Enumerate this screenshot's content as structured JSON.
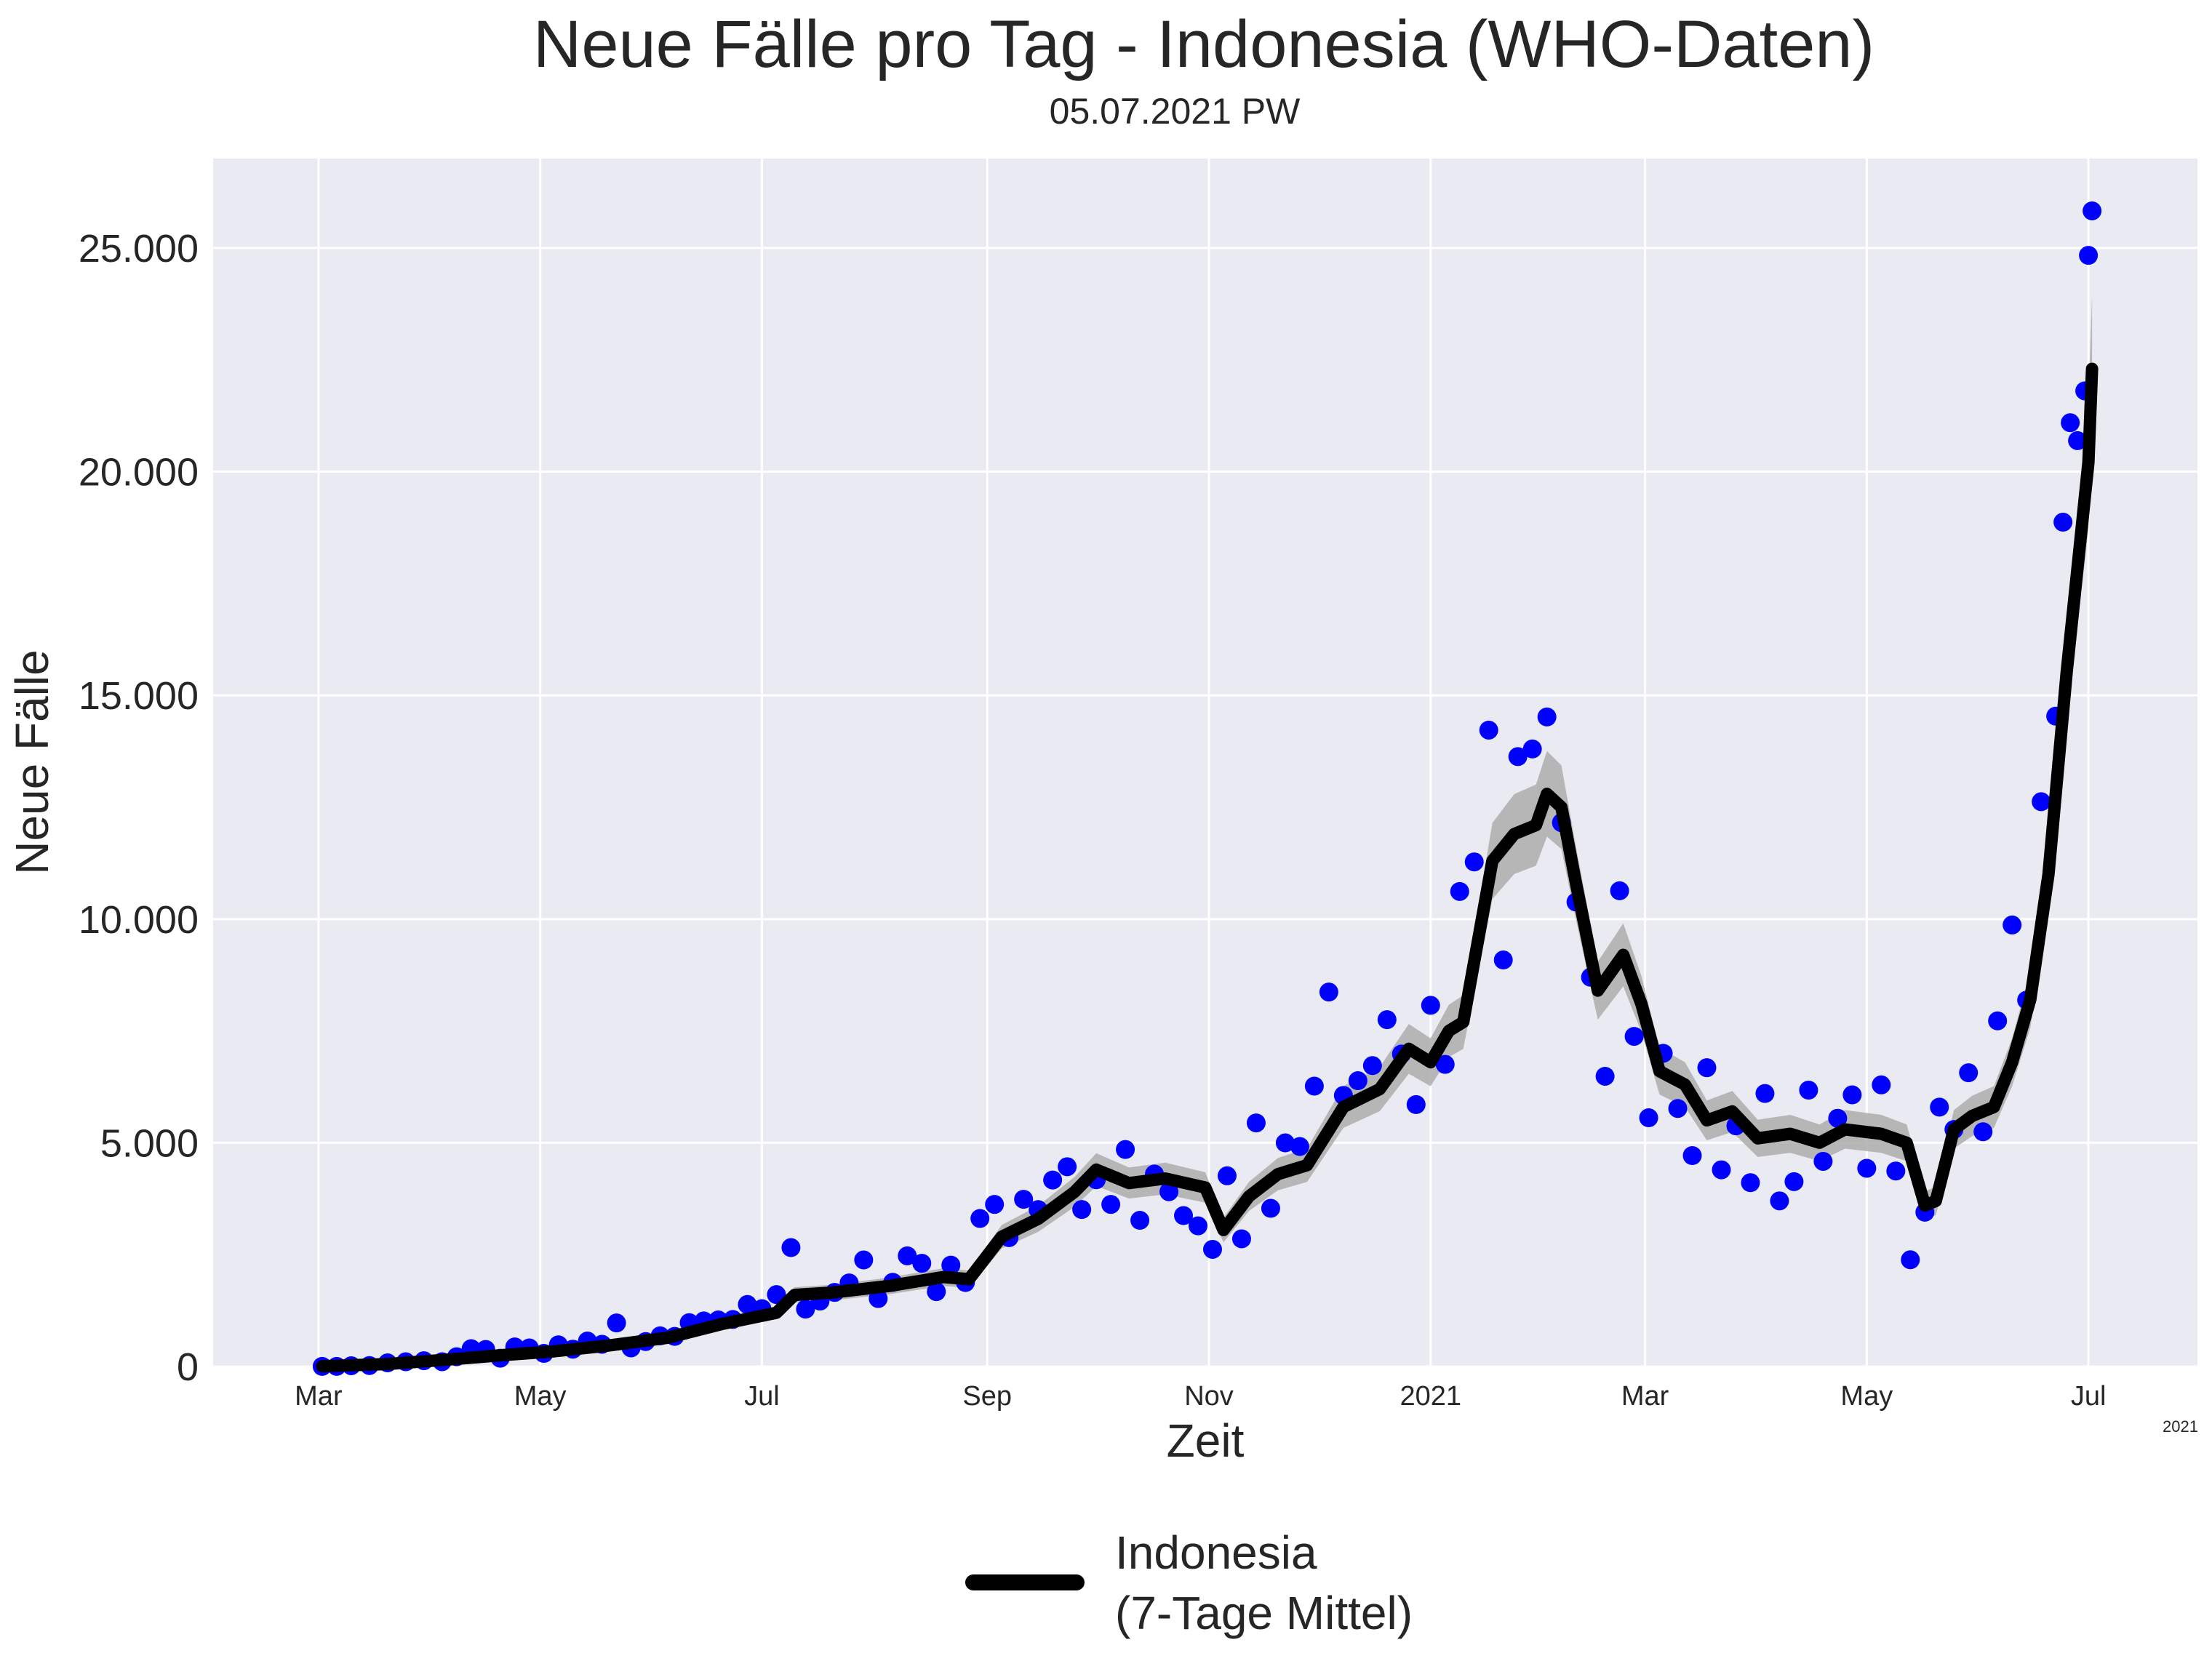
{
  "chart_data": {
    "type": "line",
    "title": "Neue Fälle pro Tag - Indonesia (WHO-Daten)",
    "subtitle": "05.07.2021 PW",
    "xlabel": "Zeit",
    "ylabel": "Neue Fälle",
    "x_offset_label": "2021",
    "xlim": [
      "2020-02-01",
      "2021-07-31"
    ],
    "ylim": [
      0,
      27000
    ],
    "grid": true,
    "background": "#EAEAF2",
    "x_ticks": [
      {
        "date": "2020-03-01",
        "label": "Mar"
      },
      {
        "date": "2020-05-01",
        "label": "May"
      },
      {
        "date": "2020-07-01",
        "label": "Jul"
      },
      {
        "date": "2020-09-01",
        "label": "Sep"
      },
      {
        "date": "2020-11-01",
        "label": "Nov"
      },
      {
        "date": "2021-01-01",
        "label": "2021"
      },
      {
        "date": "2021-03-01",
        "label": "Mar"
      },
      {
        "date": "2021-05-01",
        "label": "May"
      },
      {
        "date": "2021-07-01",
        "label": "Jul"
      }
    ],
    "y_ticks": [
      {
        "value": 0,
        "label": "0"
      },
      {
        "value": 5000,
        "label": "5.000"
      },
      {
        "value": 10000,
        "label": "10.000"
      },
      {
        "value": 15000,
        "label": "15.000"
      },
      {
        "value": 20000,
        "label": "20.000"
      },
      {
        "value": 25000,
        "label": "25.000"
      }
    ],
    "daily_points_color": "#0000FF",
    "band_color": "#B0B0B0",
    "line_color": "#000000",
    "daily_points": [
      [
        "2020-03-02",
        2
      ],
      [
        "2020-03-06",
        2
      ],
      [
        "2020-03-10",
        17
      ],
      [
        "2020-03-15",
        21
      ],
      [
        "2020-03-20",
        81
      ],
      [
        "2020-03-25",
        105
      ],
      [
        "2020-03-30",
        129
      ],
      [
        "2020-04-04",
        106
      ],
      [
        "2020-04-08",
        218
      ],
      [
        "2020-04-12",
        399
      ],
      [
        "2020-04-16",
        380
      ],
      [
        "2020-04-20",
        185
      ],
      [
        "2020-04-24",
        436
      ],
      [
        "2020-04-28",
        415
      ],
      [
        "2020-05-02",
        292
      ],
      [
        "2020-05-06",
        484
      ],
      [
        "2020-05-10",
        387
      ],
      [
        "2020-05-14",
        568
      ],
      [
        "2020-05-18",
        496
      ],
      [
        "2020-05-22",
        973
      ],
      [
        "2020-05-26",
        415
      ],
      [
        "2020-05-30",
        557
      ],
      [
        "2020-06-03",
        684
      ],
      [
        "2020-06-07",
        672
      ],
      [
        "2020-06-11",
        979
      ],
      [
        "2020-06-15",
        1017
      ],
      [
        "2020-06-19",
        1041
      ],
      [
        "2020-06-23",
        1051
      ],
      [
        "2020-06-27",
        1385
      ],
      [
        "2020-07-01",
        1293
      ],
      [
        "2020-07-05",
        1607
      ],
      [
        "2020-07-09",
        2657
      ],
      [
        "2020-07-13",
        1282
      ],
      [
        "2020-07-17",
        1462
      ],
      [
        "2020-07-21",
        1655
      ],
      [
        "2020-07-25",
        1868
      ],
      [
        "2020-07-29",
        2381
      ],
      [
        "2020-08-02",
        1519
      ],
      [
        "2020-08-06",
        1882
      ],
      [
        "2020-08-10",
        2473
      ],
      [
        "2020-08-14",
        2307
      ],
      [
        "2020-08-18",
        1673
      ],
      [
        "2020-08-22",
        2266
      ],
      [
        "2020-08-26",
        1877
      ],
      [
        "2020-08-30",
        3308
      ],
      [
        "2020-09-03",
        3622
      ],
      [
        "2020-09-07",
        2880
      ],
      [
        "2020-09-11",
        3737
      ],
      [
        "2020-09-15",
        3507
      ],
      [
        "2020-09-19",
        4168
      ],
      [
        "2020-09-23",
        4465
      ],
      [
        "2020-09-27",
        3509
      ],
      [
        "2020-10-01",
        4174
      ],
      [
        "2020-10-05",
        3622
      ],
      [
        "2020-10-09",
        4850
      ],
      [
        "2020-10-13",
        3267
      ],
      [
        "2020-10-17",
        4301
      ],
      [
        "2020-10-21",
        3906
      ],
      [
        "2020-10-25",
        3373
      ],
      [
        "2020-10-29",
        3143
      ],
      [
        "2020-11-02",
        2618
      ],
      [
        "2020-11-06",
        4262
      ],
      [
        "2020-11-10",
        2853
      ],
      [
        "2020-11-14",
        5444
      ],
      [
        "2020-11-18",
        3535
      ],
      [
        "2020-11-22",
        4998
      ],
      [
        "2020-11-26",
        4917
      ],
      [
        "2020-11-30",
        6267
      ],
      [
        "2020-12-04",
        8369
      ],
      [
        "2020-12-08",
        6058
      ],
      [
        "2020-12-12",
        6388
      ],
      [
        "2020-12-16",
        6725
      ],
      [
        "2020-12-20",
        7751
      ],
      [
        "2020-12-24",
        6984
      ],
      [
        "2020-12-28",
        5854
      ],
      [
        "2021-01-01",
        8072
      ],
      [
        "2021-01-05",
        6753
      ],
      [
        "2021-01-09",
        10617
      ],
      [
        "2021-01-13",
        11278
      ],
      [
        "2021-01-17",
        14224
      ],
      [
        "2021-01-21",
        9086
      ],
      [
        "2021-01-25",
        13632
      ],
      [
        "2021-01-29",
        13802
      ],
      [
        "2021-02-02",
        14518
      ],
      [
        "2021-02-06",
        12156
      ],
      [
        "2021-02-10",
        10381
      ],
      [
        "2021-02-14",
        8700
      ],
      [
        "2021-02-18",
        6486
      ],
      [
        "2021-02-22",
        10633
      ],
      [
        "2021-02-26",
        7378
      ],
      [
        "2021-03-02",
        5559
      ],
      [
        "2021-03-06",
        7000
      ],
      [
        "2021-03-10",
        5767
      ],
      [
        "2021-03-14",
        4714
      ],
      [
        "2021-03-18",
        6678
      ],
      [
        "2021-03-22",
        4396
      ],
      [
        "2021-03-26",
        5379
      ],
      [
        "2021-03-30",
        4108
      ],
      [
        "2021-04-03",
        6101
      ],
      [
        "2021-04-07",
        3701
      ],
      [
        "2021-04-11",
        4131
      ],
      [
        "2021-04-15",
        6177
      ],
      [
        "2021-04-19",
        4585
      ],
      [
        "2021-04-23",
        5548
      ],
      [
        "2021-04-27",
        6071
      ],
      [
        "2021-05-01",
        4430
      ],
      [
        "2021-05-05",
        6294
      ],
      [
        "2021-05-09",
        4369
      ],
      [
        "2021-05-13",
        2385
      ],
      [
        "2021-05-17",
        3448
      ],
      [
        "2021-05-21",
        5797
      ],
      [
        "2021-05-25",
        5297
      ],
      [
        "2021-05-29",
        6565
      ],
      [
        "2021-06-02",
        5246
      ],
      [
        "2021-06-06",
        7725
      ],
      [
        "2021-06-10",
        9868
      ],
      [
        "2021-06-14",
        8189
      ],
      [
        "2021-06-18",
        12624
      ],
      [
        "2021-06-22",
        14536
      ],
      [
        "2021-06-24",
        18872
      ],
      [
        "2021-06-26",
        21095
      ],
      [
        "2021-06-28",
        20694
      ],
      [
        "2021-06-30",
        21807
      ],
      [
        "2021-07-01",
        24836
      ],
      [
        "2021-07-02",
        25830
      ]
    ],
    "series": [
      {
        "name": "Indonesia\n(7-Tage Mittel)",
        "points": [
          [
            "2020-03-02",
            5
          ],
          [
            "2020-03-20",
            55
          ],
          [
            "2020-04-05",
            150
          ],
          [
            "2020-04-20",
            250
          ],
          [
            "2020-05-05",
            340
          ],
          [
            "2020-05-20",
            470
          ],
          [
            "2020-06-05",
            640
          ],
          [
            "2020-06-20",
            950
          ],
          [
            "2020-07-05",
            1200
          ],
          [
            "2020-07-10",
            1600
          ],
          [
            "2020-07-20",
            1650
          ],
          [
            "2020-08-05",
            1800
          ],
          [
            "2020-08-20",
            2000
          ],
          [
            "2020-08-27",
            1950
          ],
          [
            "2020-09-05",
            2900
          ],
          [
            "2020-09-15",
            3300
          ],
          [
            "2020-09-25",
            3900
          ],
          [
            "2020-10-01",
            4400
          ],
          [
            "2020-10-10",
            4100
          ],
          [
            "2020-10-20",
            4200
          ],
          [
            "2020-10-31",
            4000
          ],
          [
            "2020-11-05",
            3050
          ],
          [
            "2020-11-12",
            3800
          ],
          [
            "2020-11-20",
            4300
          ],
          [
            "2020-11-28",
            4500
          ],
          [
            "2020-12-08",
            5800
          ],
          [
            "2020-12-18",
            6200
          ],
          [
            "2020-12-26",
            7100
          ],
          [
            "2021-01-01",
            6800
          ],
          [
            "2021-01-06",
            7500
          ],
          [
            "2021-01-10",
            7700
          ],
          [
            "2021-01-18",
            11300
          ],
          [
            "2021-01-24",
            11900
          ],
          [
            "2021-01-30",
            12100
          ],
          [
            "2021-02-02",
            12800
          ],
          [
            "2021-02-06",
            12500
          ],
          [
            "2021-02-10",
            10800
          ],
          [
            "2021-02-16",
            8400
          ],
          [
            "2021-02-23",
            9200
          ],
          [
            "2021-02-28",
            8100
          ],
          [
            "2021-03-05",
            6600
          ],
          [
            "2021-03-12",
            6300
          ],
          [
            "2021-03-18",
            5500
          ],
          [
            "2021-03-25",
            5700
          ],
          [
            "2021-04-01",
            5100
          ],
          [
            "2021-04-10",
            5200
          ],
          [
            "2021-04-18",
            5000
          ],
          [
            "2021-04-25",
            5300
          ],
          [
            "2021-05-05",
            5200
          ],
          [
            "2021-05-12",
            5000
          ],
          [
            "2021-05-17",
            3600
          ],
          [
            "2021-05-20",
            3700
          ],
          [
            "2021-05-25",
            5300
          ],
          [
            "2021-05-30",
            5600
          ],
          [
            "2021-06-05",
            5800
          ],
          [
            "2021-06-10",
            6800
          ],
          [
            "2021-06-15",
            8200
          ],
          [
            "2021-06-20",
            11000
          ],
          [
            "2021-06-25",
            15500
          ],
          [
            "2021-07-01",
            20200
          ],
          [
            "2021-07-02",
            22300
          ]
        ]
      }
    ]
  }
}
